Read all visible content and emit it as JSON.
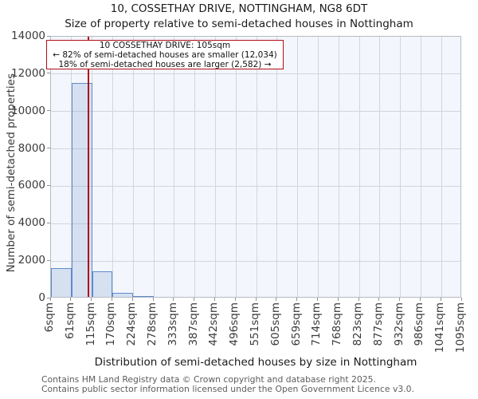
{
  "title": "10, COSSETHAY DRIVE, NOTTINGHAM, NG8 6DT",
  "subtitle": "Size of property relative to semi-detached houses in Nottingham",
  "annotation": {
    "line1": "10 COSSETHAY DRIVE: 105sqm",
    "line2": "← 82% of semi-detached houses are smaller (12,034)",
    "line3": "18% of semi-detached houses are larger (2,582) →"
  },
  "chart_data": {
    "type": "bar",
    "title": "Size of property relative to semi-detached houses in Nottingham",
    "xlabel": "Distribution of semi-detached houses by size in Nottingham",
    "ylabel": "Number of semi-detached properties",
    "x_tick_labels": [
      "6sqm",
      "61sqm",
      "115sqm",
      "170sqm",
      "224sqm",
      "278sqm",
      "333sqm",
      "387sqm",
      "442sqm",
      "496sqm",
      "551sqm",
      "605sqm",
      "659sqm",
      "714sqm",
      "768sqm",
      "823sqm",
      "877sqm",
      "932sqm",
      "986sqm",
      "1041sqm",
      "1095sqm"
    ],
    "bin_edges_sqm": [
      6,
      61,
      115,
      170,
      224,
      278,
      333,
      387,
      442,
      496,
      551,
      605,
      659,
      714,
      768,
      823,
      877,
      932,
      986,
      1041,
      1095
    ],
    "values": [
      1520,
      11450,
      1380,
      220,
      46,
      0,
      0,
      0,
      0,
      0,
      0,
      0,
      0,
      0,
      0,
      0,
      0,
      0,
      0,
      0
    ],
    "y_ticks": [
      0,
      2000,
      4000,
      6000,
      8000,
      10000,
      12000,
      14000
    ],
    "ylim": [
      0,
      14000
    ],
    "xlim_sqm": [
      6,
      1095
    ],
    "grid": true,
    "marker_value_sqm": 105,
    "smaller_count": "12,034",
    "smaller_pct": "82%",
    "larger_count": "2,582",
    "larger_pct": "18%"
  },
  "colors": {
    "bar_fill": "rgba(93,140,200,0.20)",
    "bar_border": "#5d8cc8",
    "marker_line": "#b20d16",
    "annotation_border": "#b20d16",
    "plot_bg": "#f3f6fc",
    "gridline": "#d2d5db",
    "spine": "#b6bac2",
    "tick_text": "#3a3a3a",
    "footer_text": "#5c5c5c"
  },
  "footer": {
    "line1": "Contains HM Land Registry data © Crown copyright and database right 2025.",
    "line2": "Contains public sector information licensed under the Open Government Licence v3.0."
  }
}
